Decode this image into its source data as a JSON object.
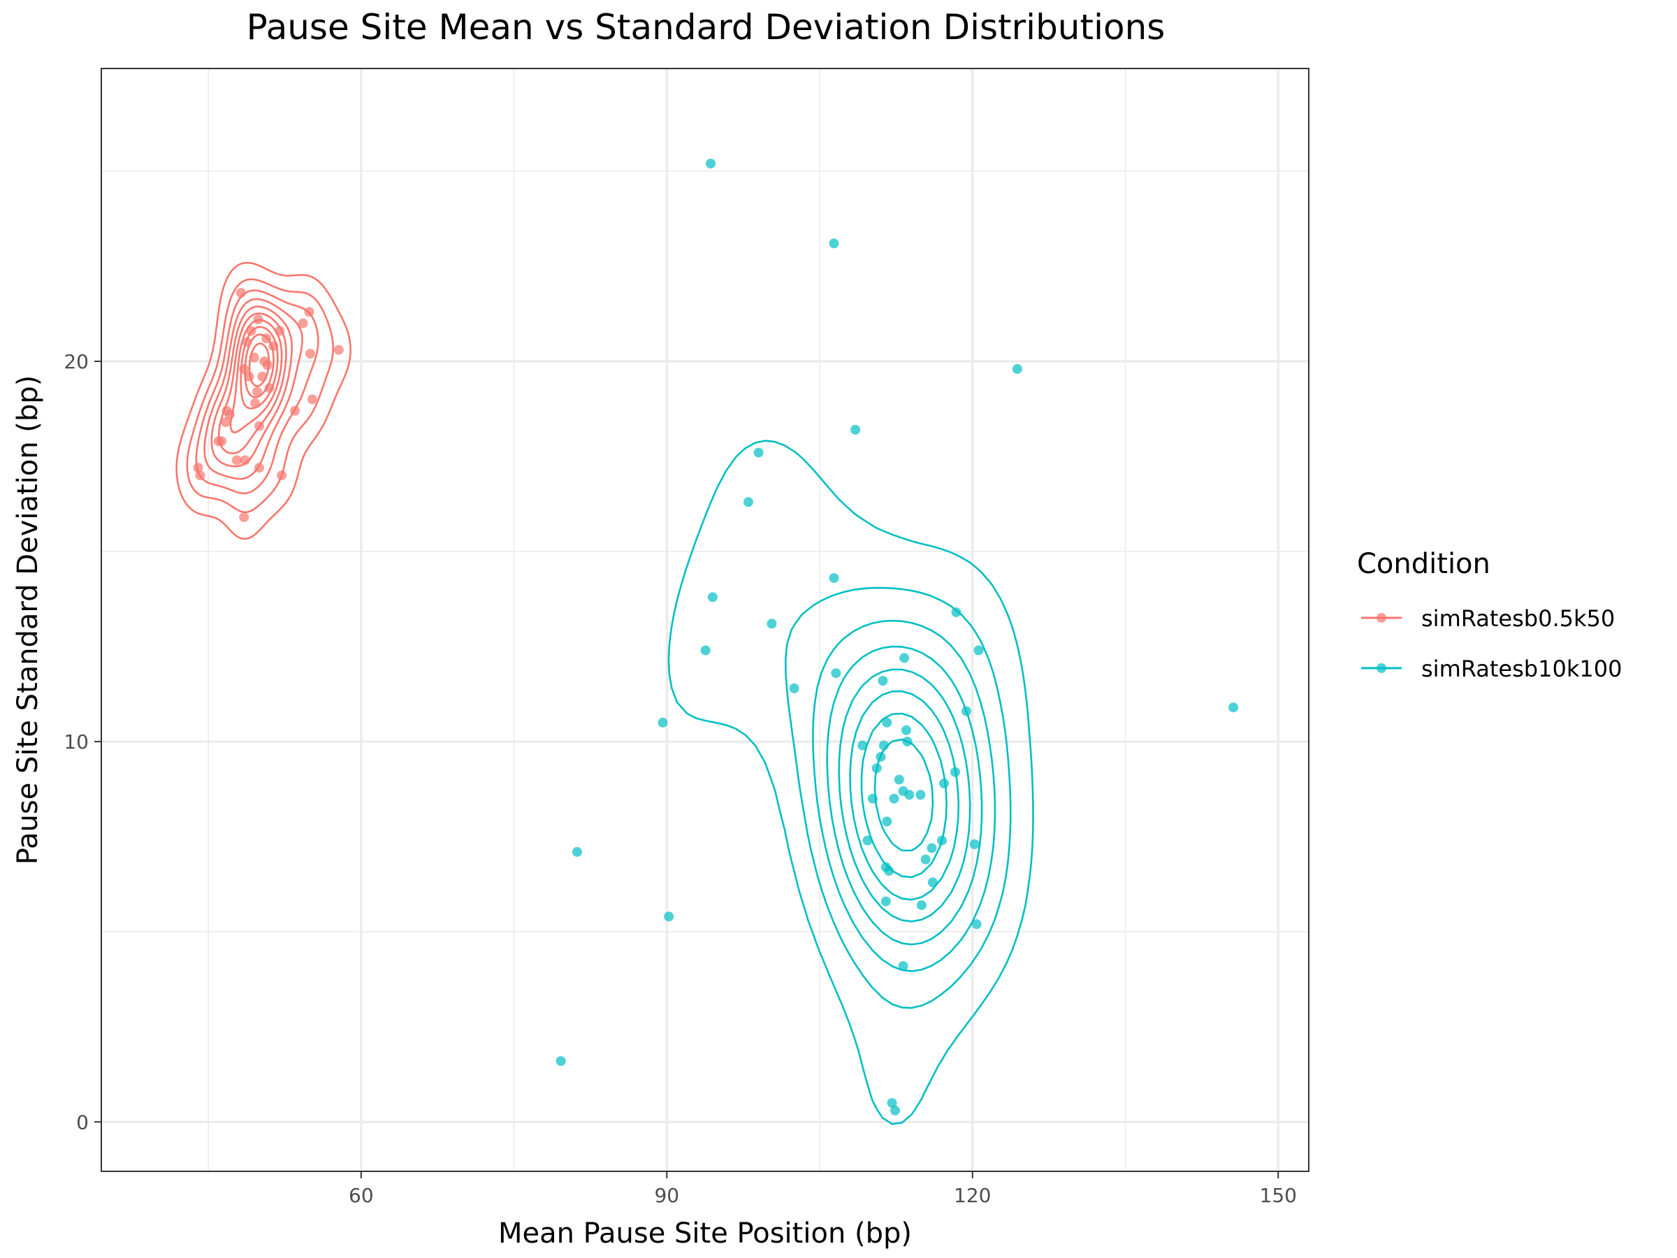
{
  "chart_data": {
    "type": "scatter",
    "title": "Pause Site Mean vs Standard Deviation Distributions",
    "xlabel": "Mean Pause Site Position (bp)",
    "ylabel": "Pause Site Standard Deviation (bp)",
    "xlim": [
      34.5,
      153
    ],
    "ylim": [
      -1.3,
      27.7
    ],
    "x_ticks": [
      60,
      90,
      120,
      150
    ],
    "y_ticks": [
      0,
      10,
      20
    ],
    "grid": true,
    "overlay": "2d density contours",
    "legend": {
      "title": "Condition",
      "position": "right"
    },
    "series": [
      {
        "name": "simRatesb0.5k50",
        "color": "#F8766D",
        "points": [
          [
            48.2,
            21.8
          ],
          [
            48.5,
            15.9
          ],
          [
            47.8,
            17.4
          ],
          [
            48.6,
            17.4
          ],
          [
            50.0,
            17.2
          ],
          [
            52.2,
            17.0
          ],
          [
            44.0,
            17.2
          ],
          [
            44.2,
            17.0
          ],
          [
            46.0,
            17.9
          ],
          [
            46.3,
            17.9
          ],
          [
            46.7,
            18.4
          ],
          [
            46.8,
            18.7
          ],
          [
            47.1,
            18.6
          ],
          [
            50.0,
            18.3
          ],
          [
            53.5,
            18.7
          ],
          [
            55.2,
            19.0
          ],
          [
            57.8,
            20.3
          ],
          [
            55.0,
            20.2
          ],
          [
            54.9,
            21.3
          ],
          [
            54.3,
            21.0
          ],
          [
            52.0,
            20.8
          ],
          [
            51.4,
            20.4
          ],
          [
            49.9,
            21.1
          ],
          [
            50.7,
            20.6
          ],
          [
            49.0,
            19.6
          ],
          [
            49.5,
            20.1
          ],
          [
            48.8,
            20.5
          ],
          [
            50.3,
            19.6
          ],
          [
            51.0,
            19.3
          ],
          [
            49.6,
            18.9
          ],
          [
            48.5,
            19.8
          ],
          [
            49.8,
            19.2
          ],
          [
            50.5,
            20.0
          ],
          [
            49.2,
            20.8
          ],
          [
            50.8,
            19.9
          ]
        ]
      },
      {
        "name": "simRatesb10k100",
        "color": "#00BFC4",
        "points": [
          [
            94.3,
            25.2
          ],
          [
            106.4,
            23.1
          ],
          [
            124.4,
            19.8
          ],
          [
            108.5,
            18.2
          ],
          [
            99.0,
            17.6
          ],
          [
            98.0,
            16.3
          ],
          [
            106.4,
            14.3
          ],
          [
            94.5,
            13.8
          ],
          [
            100.3,
            13.1
          ],
          [
            93.8,
            12.4
          ],
          [
            102.5,
            11.4
          ],
          [
            106.6,
            11.8
          ],
          [
            111.2,
            11.6
          ],
          [
            113.3,
            12.2
          ],
          [
            118.4,
            13.4
          ],
          [
            120.6,
            12.4
          ],
          [
            89.6,
            10.5
          ],
          [
            119.4,
            10.8
          ],
          [
            145.6,
            10.9
          ],
          [
            111.6,
            10.5
          ],
          [
            109.2,
            9.9
          ],
          [
            111.3,
            9.9
          ],
          [
            111.0,
            9.6
          ],
          [
            110.6,
            9.3
          ],
          [
            113.5,
            10.3
          ],
          [
            113.6,
            10.0
          ],
          [
            117.2,
            8.9
          ],
          [
            118.3,
            9.2
          ],
          [
            110.2,
            8.5
          ],
          [
            112.3,
            8.5
          ],
          [
            113.2,
            8.7
          ],
          [
            113.8,
            8.6
          ],
          [
            114.9,
            8.6
          ],
          [
            111.6,
            7.9
          ],
          [
            109.7,
            7.4
          ],
          [
            117.0,
            7.4
          ],
          [
            120.2,
            7.3
          ],
          [
            116.0,
            7.2
          ],
          [
            115.4,
            6.9
          ],
          [
            111.5,
            6.7
          ],
          [
            116.1,
            6.3
          ],
          [
            111.5,
            5.8
          ],
          [
            115.0,
            5.7
          ],
          [
            120.4,
            5.2
          ],
          [
            90.2,
            5.4
          ],
          [
            81.2,
            7.1
          ],
          [
            113.2,
            4.1
          ],
          [
            79.6,
            1.6
          ],
          [
            112.1,
            0.5
          ],
          [
            112.4,
            0.3
          ],
          [
            111.8,
            6.6
          ],
          [
            112.8,
            9.0
          ]
        ]
      }
    ]
  }
}
